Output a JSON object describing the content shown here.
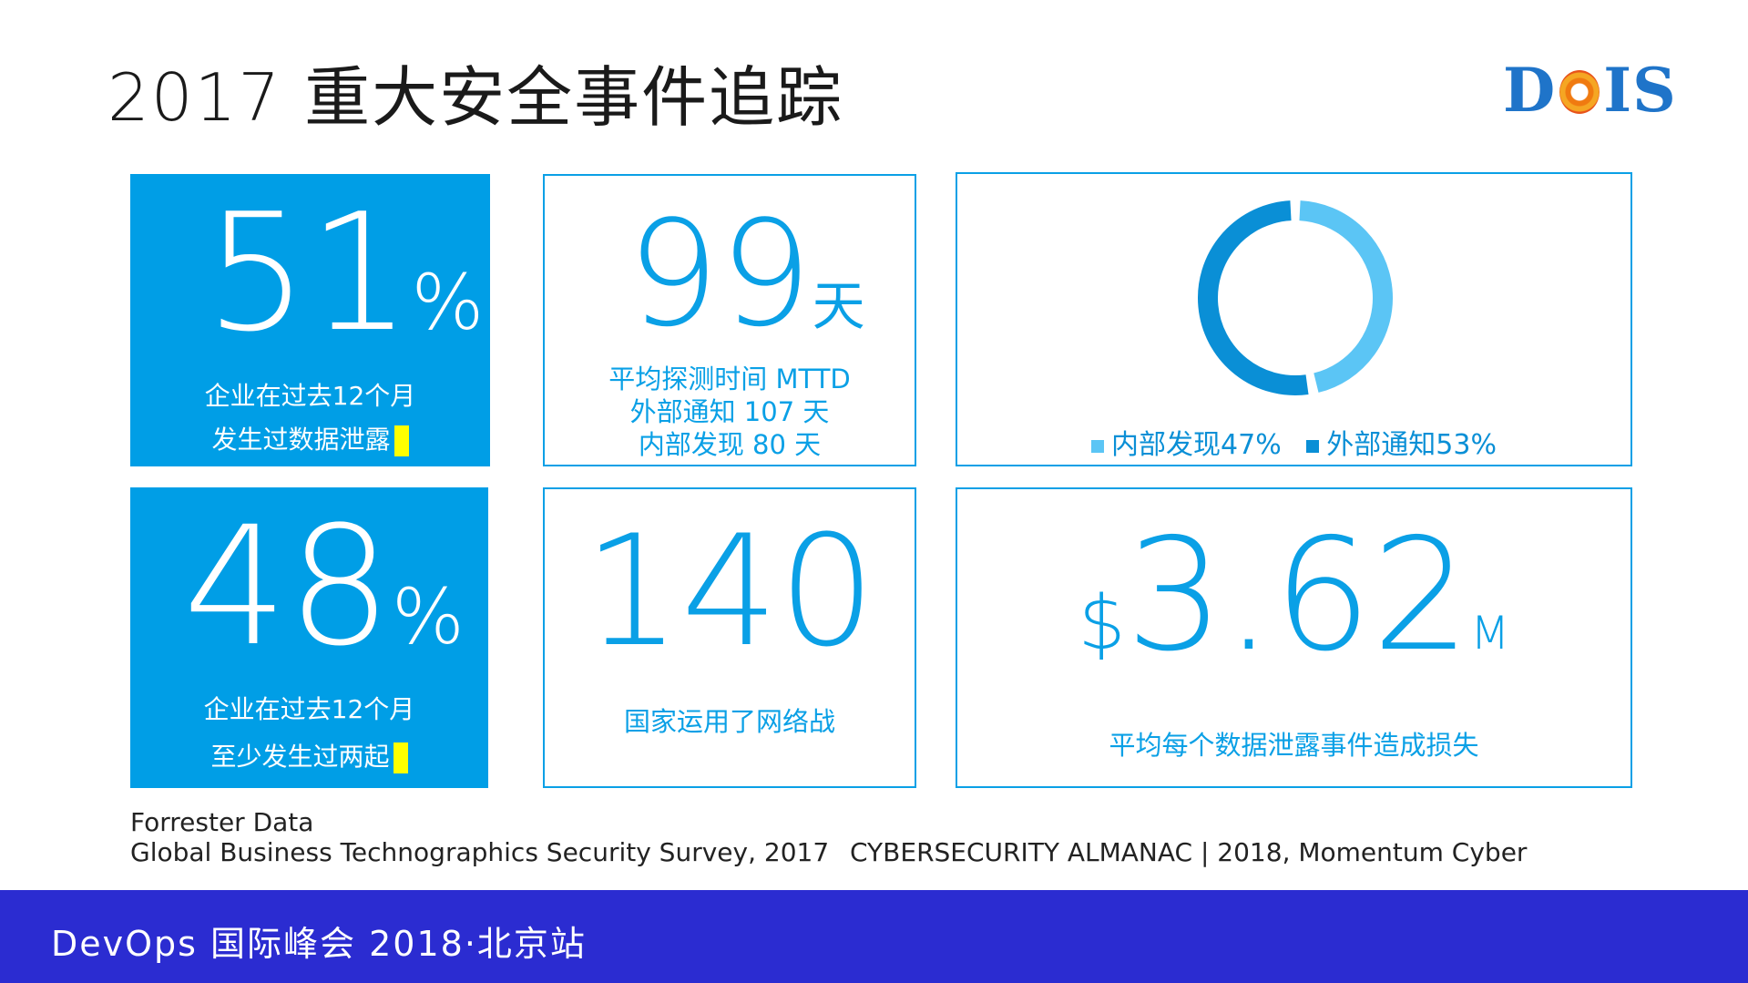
{
  "title": "2017 重大安全事件追踪",
  "logo": {
    "before_o": "D",
    "after_o": "IS"
  },
  "cards": {
    "c1": {
      "value": "51",
      "unit": "%",
      "line1": "企业在过去12个月",
      "line2": "发生过数据泄露"
    },
    "c2": {
      "value": "99",
      "unit": "天",
      "line1": "平均探测时间 MTTD",
      "line2": "外部通知 107 天",
      "line3": "内部发现 80 天"
    },
    "c3": {
      "legend_internal": "内部发现47%",
      "legend_external": "外部通知53%",
      "internal_pct": 47,
      "external_pct": 53,
      "color_internal": "#5bc5f5",
      "color_external": "#0a8fd6"
    },
    "c4": {
      "value": "48",
      "unit": "%",
      "line1": "企业在过去12个月",
      "line2": "至少发生过两起"
    },
    "c5": {
      "value": "140",
      "line1": "国家运用了网络战"
    },
    "c6": {
      "prefix": "$",
      "value": "3.62",
      "unit": "M",
      "line1": "平均每个数据泄露事件造成损失"
    }
  },
  "sources": {
    "left_line1": "Forrester Data",
    "left_line2": "Global Business Technographics Security Survey, 2017",
    "right": "CYBERSECURITY ALMANAC | 2018, Momentum Cyber"
  },
  "footer": "DevOps 国际峰会 2018·北京站",
  "colors": {
    "accent": "#009ee6",
    "footer_bg": "#2b2cd1",
    "highlight": "#ffff00"
  }
}
